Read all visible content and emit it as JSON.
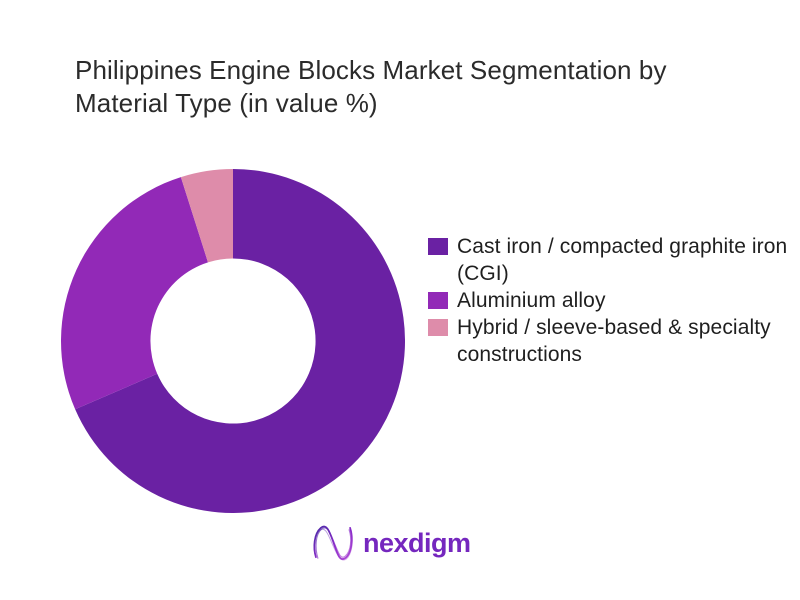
{
  "chart_data": {
    "type": "pie",
    "subtype": "donut",
    "title": "Philippines Engine Blocks Market Segmentation by Material Type (in value %)",
    "categories": [
      "Cast iron / compacted graphite iron (CGI)",
      "Aluminium alloy",
      "Hybrid / sleeve-based & specialty constructions"
    ],
    "values": [
      68.5,
      26.6,
      4.9
    ],
    "unit": "%",
    "colors": [
      "#6A21A3",
      "#9229B7",
      "#DE8CAA"
    ],
    "start_angle_deg": 0,
    "direction": "clockwise",
    "inner_radius_ratio": 0.48,
    "legend_position": "right",
    "data_labels": false,
    "background": "#FFFFFF",
    "title_color": "#2B2B2B",
    "legend_text_color": "#1F1F1F"
  },
  "footer": {
    "brand": "nexdigm",
    "brand_color": "#7527BE"
  }
}
